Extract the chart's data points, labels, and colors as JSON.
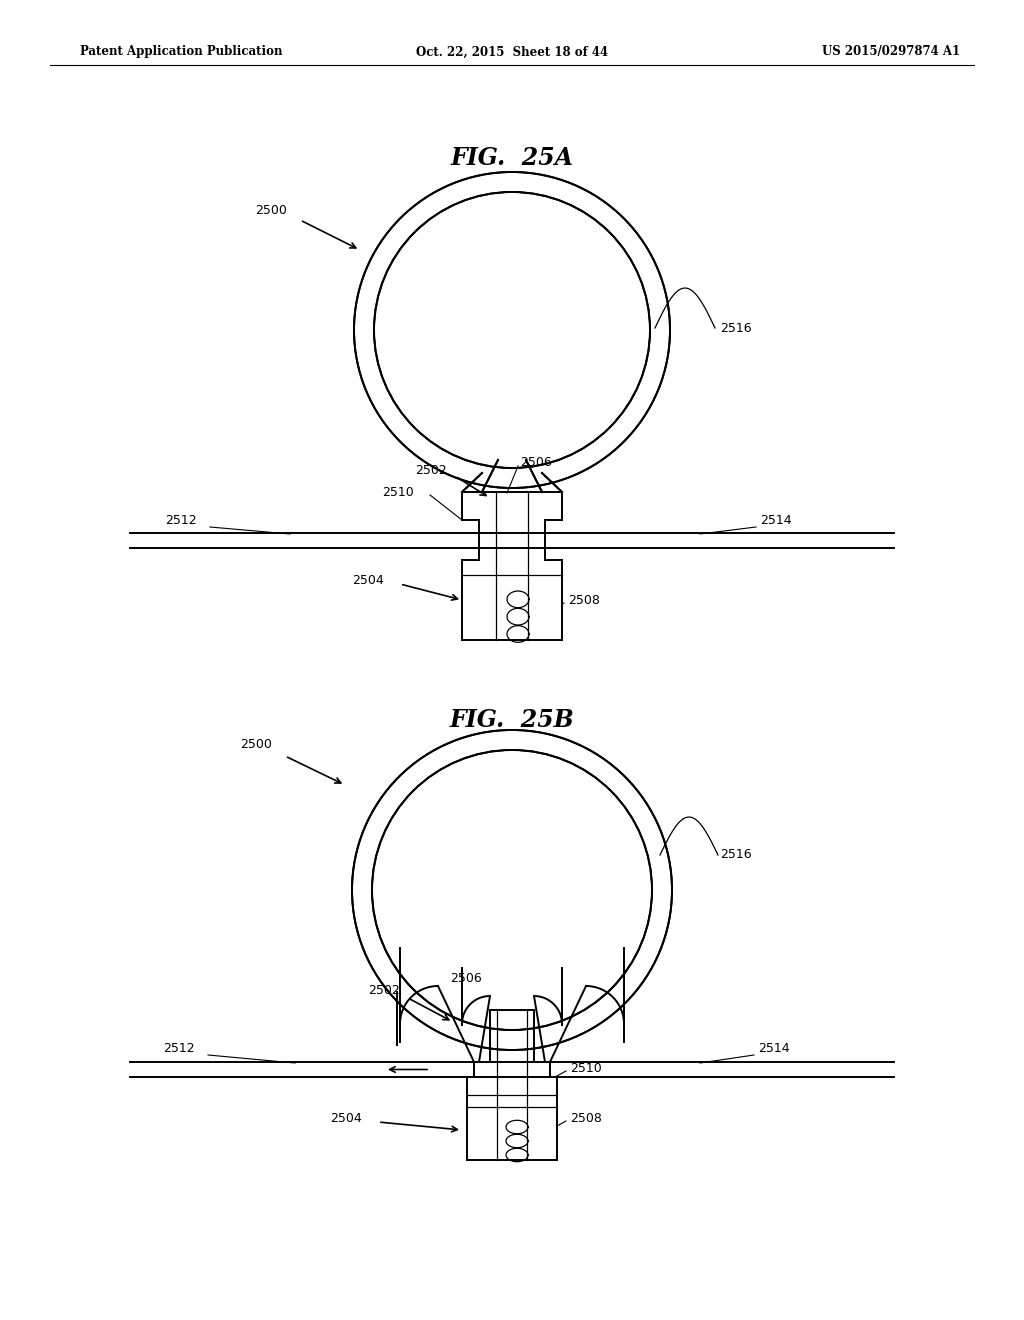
{
  "bg_color": "#ffffff",
  "lc": "#000000",
  "header_left": "Patent Application Publication",
  "header_mid": "Oct. 22, 2015  Sheet 18 of 44",
  "header_right": "US 2015/0297874 A1",
  "fig_25A_title": "FIG.  25A",
  "fig_25B_title": "FIG.  25B",
  "lw_main": 1.4,
  "lw_thin": 0.9,
  "label_fs": 9
}
